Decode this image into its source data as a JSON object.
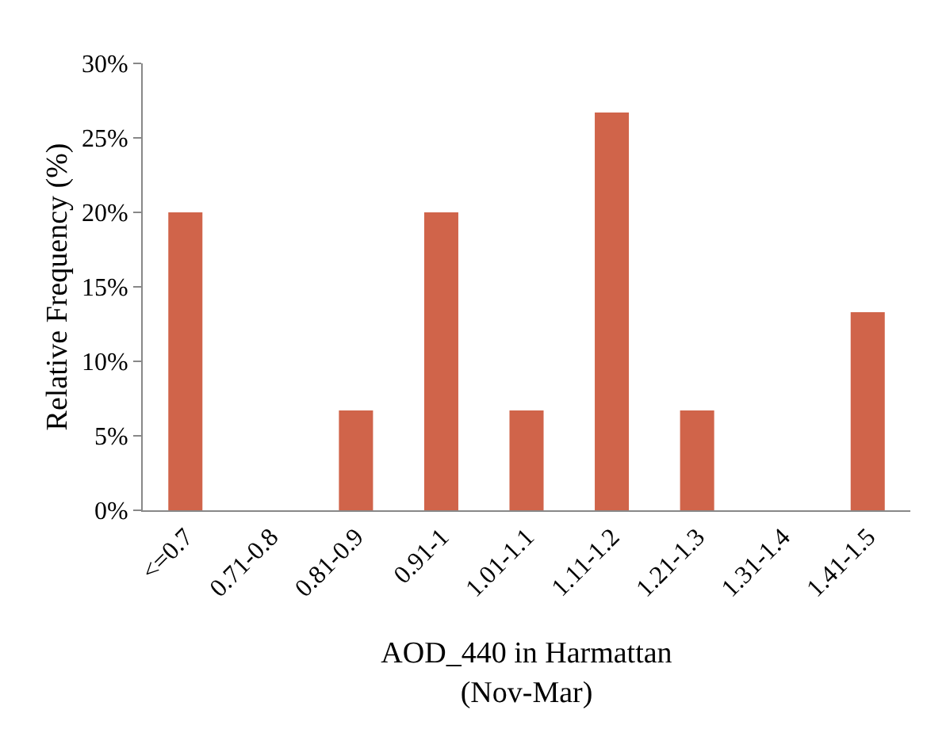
{
  "chart_data": {
    "type": "bar",
    "xlabel": "AOD_440 in Harmattan\n(Nov-Mar)",
    "ylabel": "Relative Frequency (%)",
    "categories": [
      "<=0.7",
      "0.71-0.8",
      "0.81-0.9",
      "0.91-1",
      "1.01-1.1",
      "1.11-1.2",
      "1.21-1.3",
      "1.31-1.4",
      "1.41-1.5"
    ],
    "values": [
      20,
      0,
      6.7,
      20,
      6.7,
      26.7,
      6.7,
      0,
      13.3
    ],
    "color": "#d0644a",
    "ylim": [
      0,
      30
    ],
    "yticks": [
      {
        "value": 0,
        "label": "0%"
      },
      {
        "value": 5,
        "label": "5%"
      },
      {
        "value": 10,
        "label": "10%"
      },
      {
        "value": 15,
        "label": "15%"
      },
      {
        "value": 20,
        "label": "20%"
      },
      {
        "value": 25,
        "label": "25%"
      },
      {
        "value": 30,
        "label": "30%"
      }
    ],
    "legend": false
  }
}
